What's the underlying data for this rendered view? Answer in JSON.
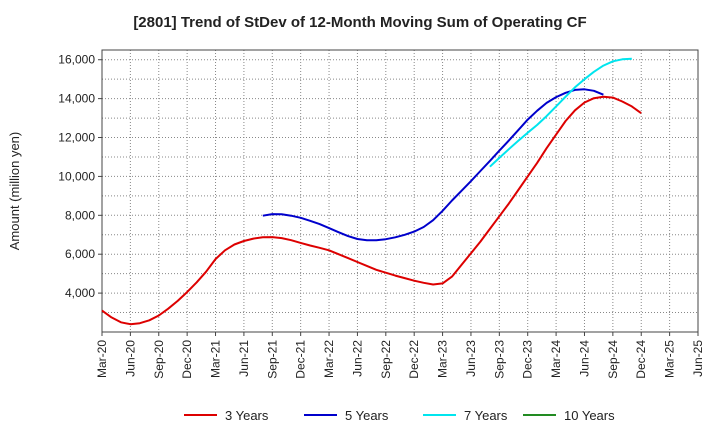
{
  "chart_data": {
    "type": "line",
    "title": "[2801]  Trend of StDev of 12-Month Moving Sum of Operating CF",
    "ylabel": "Amount (million yen)",
    "xlabel": "",
    "x_ticks": [
      "Mar-20",
      "Jun-20",
      "Sep-20",
      "Dec-20",
      "Mar-21",
      "Jun-21",
      "Sep-21",
      "Dec-21",
      "Mar-22",
      "Jun-22",
      "Sep-22",
      "Dec-22",
      "Mar-23",
      "Jun-23",
      "Sep-23",
      "Dec-23",
      "Mar-24",
      "Jun-24",
      "Sep-24",
      "Dec-24",
      "Mar-25",
      "Jun-25"
    ],
    "y_ticks": [
      4000,
      6000,
      8000,
      10000,
      12000,
      14000,
      16000
    ],
    "y_tick_labels": [
      "4,000",
      "6,000",
      "8,000",
      "10,000",
      "12,000",
      "14,000",
      "16,000"
    ],
    "ylim": [
      2000,
      16500
    ],
    "grid": true,
    "legend_position": "bottom",
    "series": [
      {
        "name": "3 Years",
        "color": "#dd0000",
        "points": [
          [
            "Mar-20",
            3100
          ],
          [
            "Apr-20",
            2750
          ],
          [
            "May-20",
            2500
          ],
          [
            "Jun-20",
            2400
          ],
          [
            "Jul-20",
            2450
          ],
          [
            "Aug-20",
            2600
          ],
          [
            "Sep-20",
            2850
          ],
          [
            "Oct-20",
            3200
          ],
          [
            "Nov-20",
            3600
          ],
          [
            "Dec-20",
            4050
          ],
          [
            "Jan-21",
            4550
          ],
          [
            "Feb-21",
            5100
          ],
          [
            "Mar-21",
            5750
          ],
          [
            "Apr-21",
            6200
          ],
          [
            "May-21",
            6500
          ],
          [
            "Jun-21",
            6680
          ],
          [
            "Jul-21",
            6800
          ],
          [
            "Aug-21",
            6870
          ],
          [
            "Sep-21",
            6880
          ],
          [
            "Oct-21",
            6830
          ],
          [
            "Nov-21",
            6720
          ],
          [
            "Dec-21",
            6580
          ],
          [
            "Jan-22",
            6450
          ],
          [
            "Feb-22",
            6330
          ],
          [
            "Mar-22",
            6200
          ],
          [
            "Apr-22",
            6000
          ],
          [
            "May-22",
            5800
          ],
          [
            "Jun-22",
            5600
          ],
          [
            "Jul-22",
            5400
          ],
          [
            "Aug-22",
            5200
          ],
          [
            "Sep-22",
            5050
          ],
          [
            "Oct-22",
            4900
          ],
          [
            "Nov-22",
            4770
          ],
          [
            "Dec-22",
            4640
          ],
          [
            "Jan-23",
            4530
          ],
          [
            "Feb-23",
            4440
          ],
          [
            "Mar-23",
            4500
          ],
          [
            "Apr-23",
            4850
          ],
          [
            "May-23",
            5450
          ],
          [
            "Jun-23",
            6050
          ],
          [
            "Jul-23",
            6650
          ],
          [
            "Aug-23",
            7300
          ],
          [
            "Sep-23",
            7950
          ],
          [
            "Oct-23",
            8600
          ],
          [
            "Nov-23",
            9300
          ],
          [
            "Dec-23",
            10000
          ],
          [
            "Jan-24",
            10700
          ],
          [
            "Feb-24",
            11450
          ],
          [
            "Mar-24",
            12150
          ],
          [
            "Apr-24",
            12850
          ],
          [
            "May-24",
            13400
          ],
          [
            "Jun-24",
            13800
          ],
          [
            "Jul-24",
            14020
          ],
          [
            "Aug-24",
            14100
          ],
          [
            "Sep-24",
            14050
          ],
          [
            "Oct-24",
            13850
          ],
          [
            "Nov-24",
            13600
          ],
          [
            "Dec-24",
            13250
          ]
        ]
      },
      {
        "name": "5 Years",
        "color": "#0000cc",
        "points": [
          [
            "Aug-21",
            7980
          ],
          [
            "Sep-21",
            8060
          ],
          [
            "Oct-21",
            8050
          ],
          [
            "Nov-21",
            7980
          ],
          [
            "Dec-21",
            7870
          ],
          [
            "Jan-22",
            7720
          ],
          [
            "Feb-22",
            7550
          ],
          [
            "Mar-22",
            7340
          ],
          [
            "Apr-22",
            7130
          ],
          [
            "May-22",
            6930
          ],
          [
            "Jun-22",
            6780
          ],
          [
            "Jul-22",
            6720
          ],
          [
            "Aug-22",
            6720
          ],
          [
            "Sep-22",
            6770
          ],
          [
            "Oct-22",
            6870
          ],
          [
            "Nov-22",
            7000
          ],
          [
            "Dec-22",
            7160
          ],
          [
            "Jan-23",
            7400
          ],
          [
            "Feb-23",
            7750
          ],
          [
            "Mar-23",
            8230
          ],
          [
            "Apr-23",
            8760
          ],
          [
            "May-23",
            9260
          ],
          [
            "Jun-23",
            9760
          ],
          [
            "Jul-23",
            10280
          ],
          [
            "Aug-23",
            10800
          ],
          [
            "Sep-23",
            11320
          ],
          [
            "Oct-23",
            11840
          ],
          [
            "Nov-23",
            12380
          ],
          [
            "Dec-23",
            12920
          ],
          [
            "Jan-24",
            13380
          ],
          [
            "Feb-24",
            13780
          ],
          [
            "Mar-24",
            14080
          ],
          [
            "Apr-24",
            14300
          ],
          [
            "May-24",
            14450
          ],
          [
            "Jun-24",
            14480
          ],
          [
            "Jul-24",
            14400
          ],
          [
            "Aug-24",
            14200
          ]
        ]
      },
      {
        "name": "7 Years",
        "color": "#00e5ee",
        "points": [
          [
            "Aug-23",
            10500
          ],
          [
            "Sep-23",
            10950
          ],
          [
            "Oct-23",
            11400
          ],
          [
            "Nov-23",
            11830
          ],
          [
            "Dec-23",
            12250
          ],
          [
            "Jan-24",
            12650
          ],
          [
            "Feb-24",
            13100
          ],
          [
            "Mar-24",
            13600
          ],
          [
            "Apr-24",
            14100
          ],
          [
            "May-24",
            14580
          ],
          [
            "Jun-24",
            15000
          ],
          [
            "Jul-24",
            15380
          ],
          [
            "Aug-24",
            15700
          ],
          [
            "Sep-24",
            15920
          ],
          [
            "Oct-24",
            16020
          ],
          [
            "Nov-24",
            16050
          ]
        ]
      },
      {
        "name": "10 Years",
        "color": "#228b22",
        "points": []
      }
    ]
  }
}
